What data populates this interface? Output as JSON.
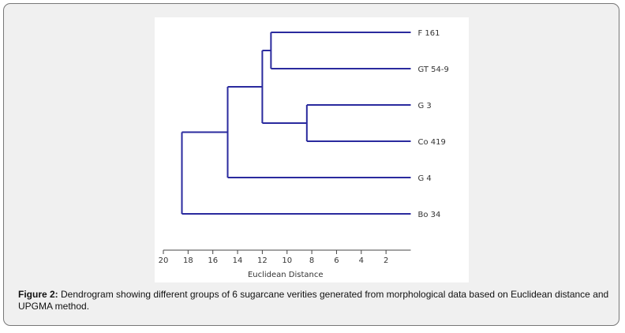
{
  "chart_data": {
    "type": "dendrogram",
    "xlabel": "Euclidean Distance",
    "xlim": [
      20,
      0
    ],
    "xticks": [
      20,
      18,
      16,
      14,
      12,
      10,
      8,
      6,
      4,
      2
    ],
    "leaves": [
      "F 161",
      "GT 54-9",
      "G 3",
      "Co 419",
      "G 4",
      "Bo 34"
    ],
    "merges": [
      {
        "a": "F 161",
        "b": "GT 54-9",
        "height": 11.3,
        "id": "m1"
      },
      {
        "a": "G 3",
        "b": "Co 419",
        "height": 8.4,
        "id": "m2"
      },
      {
        "a": "m1",
        "b": "m2",
        "height": 12.0,
        "id": "m3"
      },
      {
        "a": "m3",
        "b": "G 4",
        "height": 14.8,
        "id": "m4"
      },
      {
        "a": "m4",
        "b": "Bo 34",
        "height": 18.5,
        "id": "m5"
      }
    ],
    "line_color": "#2a2a9e"
  },
  "caption": {
    "label": "Figure 2:",
    "text": " Dendrogram showing different groups of 6 sugarcane verities generated from morphological data based on Euclidean distance and UPGMA method."
  }
}
